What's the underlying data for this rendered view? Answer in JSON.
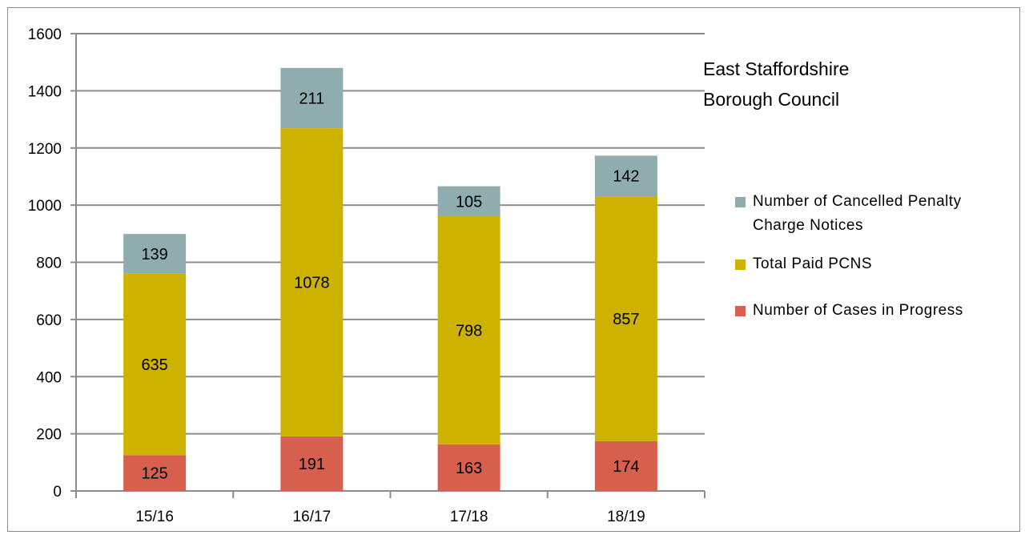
{
  "chart_data": {
    "type": "bar",
    "stacked": true,
    "title": "East Staffordshire Borough Council",
    "categories": [
      "15/16",
      "16/17",
      "17/18",
      "18/19"
    ],
    "ylim": [
      0,
      1600
    ],
    "yticks": [
      0,
      200,
      400,
      600,
      800,
      1000,
      1200,
      1400,
      1600
    ],
    "grid": true,
    "legend_position": "right",
    "series": [
      {
        "name": "Number of Cases in Progress",
        "color": "#d6604d",
        "values": [
          125,
          191,
          163,
          174
        ]
      },
      {
        "name": "Total Paid PCNS",
        "color": "#cdb300",
        "values": [
          635,
          1078,
          798,
          857
        ]
      },
      {
        "name": "Number of Cancelled Penalty Charge Notices",
        "color": "#8fadae",
        "values": [
          139,
          211,
          105,
          142
        ]
      }
    ],
    "legend_order": [
      2,
      1,
      0
    ]
  }
}
